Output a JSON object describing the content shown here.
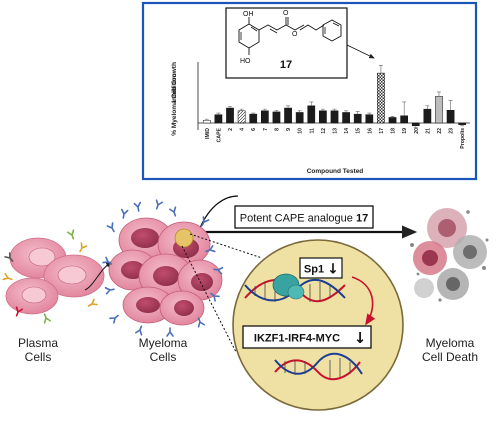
{
  "inset_chart": {
    "compound_label": "17",
    "structure_atoms": {
      "oh_top": "OH",
      "oh_bottom": "HO",
      "carbonyl_o": "O",
      "ester_o": "O"
    },
    "chart_data": {
      "type": "bar",
      "ylabel": "% Myeloma Cell Growth Inhibition",
      "xlabel": "Compound Tested",
      "ylim": [
        -10,
        110
      ],
      "categories": [
        "IMiD",
        "CAPE",
        "2",
        "4",
        "6",
        "7",
        "8",
        "9",
        "10",
        "11",
        "12",
        "13",
        "14",
        "15",
        "16",
        "17",
        "18",
        "19",
        "20",
        "21",
        "22",
        "23",
        "Propolis"
      ],
      "values": [
        5,
        15,
        27,
        22,
        16,
        22,
        20,
        27,
        19,
        31,
        22,
        22,
        19,
        16,
        15,
        90,
        10,
        13,
        -5,
        25,
        48,
        23,
        -3
      ],
      "errors": [
        2,
        3,
        3,
        3,
        2,
        3,
        3,
        4,
        3,
        7,
        3,
        3,
        3,
        5,
        3,
        14,
        2,
        25,
        3,
        6,
        8,
        18,
        2
      ],
      "bar_styles": {
        "open": [
          "IMiD"
        ],
        "hatched": [
          "4"
        ],
        "checkered": [
          "17"
        ],
        "grey": [
          "22"
        ]
      },
      "colors": {
        "bar": "#1c1c1c",
        "grey_bar": "#bdbdbd",
        "frame": "#1a55b8"
      }
    }
  },
  "labels": {
    "plasma_cells": [
      "Plasma",
      "Cells"
    ],
    "myeloma_cells": [
      "Myeloma",
      "Cells"
    ],
    "cell_death": [
      "Myeloma",
      "Cell Death"
    ]
  },
  "analogue_box": {
    "text": "Potent CAPE analogue ",
    "compound": "17"
  },
  "sp1_label": "Sp1",
  "pathway_label": "IKZF1-IRF4-MYC",
  "down_arrow_glyph": "↓",
  "colors": {
    "cell_fill": "#e58da3",
    "nucleus_fill": "#efe1a4",
    "dna_red": "#c8102e",
    "dna_blue": "#1c3f94",
    "sp1_teal": "#38a3a0",
    "antibody_blue": "#4a6fb8"
  }
}
